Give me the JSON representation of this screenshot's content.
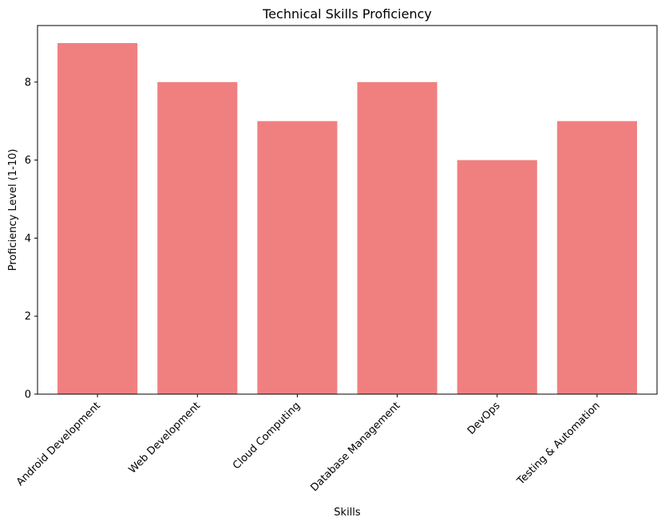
{
  "chart_data": {
    "type": "bar",
    "title": "Technical Skills Proficiency",
    "xlabel": "Skills",
    "ylabel": "Proficiency Level (1-10)",
    "categories": [
      "Android Development",
      "Web Development",
      "Cloud Computing",
      "Database Management",
      "DevOps",
      "Testing & Automation"
    ],
    "values": [
      9,
      8,
      7,
      8,
      6,
      7
    ],
    "ylim": [
      0,
      9.45
    ],
    "yticks": [
      0,
      2,
      4,
      6,
      8
    ],
    "grid": false,
    "bar_color": "#f08080",
    "x_tick_rotation": "45deg"
  }
}
